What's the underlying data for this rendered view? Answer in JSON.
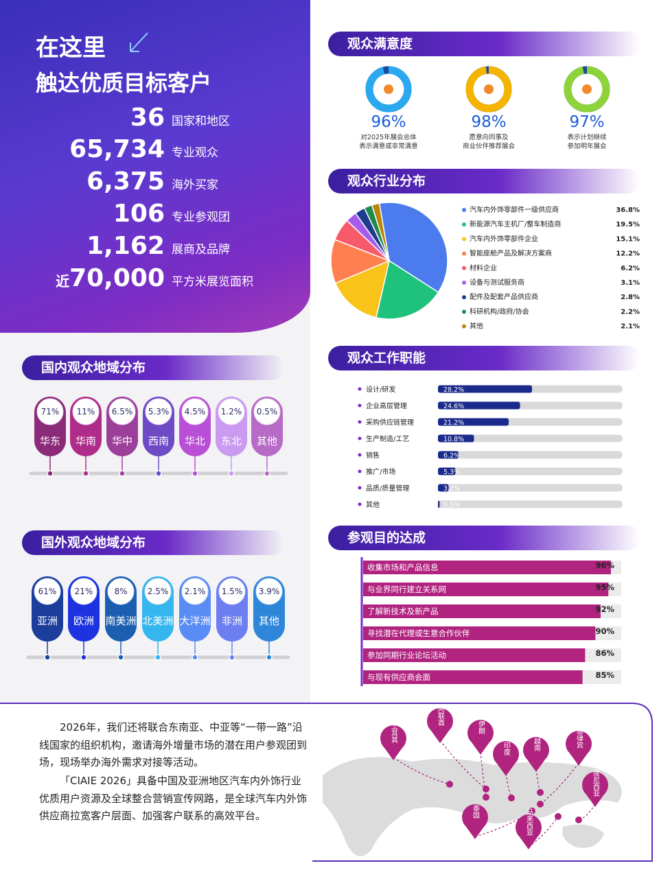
{
  "hero": {
    "title_line1": "在这里",
    "title_line2": "触达优质目标客户",
    "stats": [
      {
        "value": "36",
        "label": "国家和地区"
      },
      {
        "value": "65,734",
        "label": "专业观众"
      },
      {
        "value": "6,375",
        "label": "海外买家"
      },
      {
        "value": "106",
        "label": "专业参观团"
      },
      {
        "value": "1,162",
        "label": "展商及品牌"
      },
      {
        "prefix": "近",
        "value": "70,000",
        "label": "平方米展览面积"
      }
    ]
  },
  "domestic": {
    "title": "国内观众地域分布",
    "regions": [
      "华东",
      "华南",
      "华中",
      "西南",
      "华北",
      "东北",
      "其他"
    ],
    "value_labels": [
      "71%",
      "11%",
      "6.5%",
      "5.3%",
      "4.5%",
      "1.2%",
      "0.5%"
    ],
    "colors": [
      "#8b2a78",
      "#b02c8a",
      "#9c3f9a",
      "#6e4bc4",
      "#b94fd6",
      "#c99af0",
      "#b76ac6"
    ]
  },
  "foreign": {
    "title": "国外观众地域分布",
    "regions": [
      "亚洲",
      "欧洲",
      "南美洲",
      "北美洲",
      "大洋洲",
      "非洲",
      "其他"
    ],
    "value_labels": [
      "61%",
      "21%",
      "8%",
      "2.5%",
      "2.1%",
      "1.5%",
      "3.9%"
    ],
    "colors": [
      "#1b3d9c",
      "#1d33e0",
      "#1c5fb0",
      "#35b6ef",
      "#5a8cf5",
      "#6c7ef0",
      "#2e86d8"
    ]
  },
  "satisfaction": {
    "title": "观众满意度",
    "values": [
      96,
      98,
      97
    ],
    "value_labels": [
      "96%",
      "98%",
      "97%"
    ],
    "colors": [
      "#2aa8f0",
      "#f4b400",
      "#8fd33a"
    ],
    "descriptions": [
      [
        "对2025年展会总体",
        "表示满意或非常满意"
      ],
      [
        "愿意向同事及",
        "商业伙伴推荐展会"
      ],
      [
        "表示计划继续",
        "参加明年展会"
      ]
    ]
  },
  "industry": {
    "title": "观众行业分布",
    "type": "pie",
    "categories": [
      "汽车内外饰零部件一级供应商",
      "新能源汽车主机厂/整车制造商",
      "汽车内外饰零部件企业",
      "智能座舱产品及解决方案商",
      "材料企业",
      "设备与测试服务商",
      "配件及配套产品供应商",
      "科研机构/政府/协会",
      "其他"
    ],
    "values": [
      36.8,
      19.5,
      15.1,
      12.2,
      6.2,
      3.1,
      2.8,
      2.2,
      2.1
    ],
    "value_labels": [
      "36.8%",
      "19.5%",
      "15.1%",
      "12.2%",
      "6.2%",
      "3.1%",
      "2.8%",
      "2.2%",
      "2.1%"
    ],
    "colors": [
      "#4b7bec",
      "#1fc27a",
      "#f9c31a",
      "#ff7f50",
      "#f75b6b",
      "#a55eea",
      "#1d3c8f",
      "#1e8b4c",
      "#b8860b"
    ]
  },
  "job": {
    "title": "观众工作职能",
    "type": "bar",
    "categories": [
      "设计/研发",
      "企业高层管理",
      "采购供应链管理",
      "生产制造/工艺",
      "销售",
      "推广/市场",
      "品质/质量管理",
      "其他"
    ],
    "values": [
      28.2,
      24.6,
      21.2,
      10.8,
      6.2,
      5.3,
      3.2,
      0.5
    ],
    "value_labels": [
      "28.2%",
      "24.6%",
      "21.2%",
      "10.8%",
      "6.2%",
      "5.3%",
      "3.2%",
      "0.5%"
    ],
    "color": "#1a2a8c"
  },
  "purpose": {
    "title": "参观目的达成",
    "type": "bar",
    "categories": [
      "收集市场和产品信息",
      "与业界同行建立关系网",
      "了解新技术及新产品",
      "寻找潜在代理或生意合作伙伴",
      "参加同期行业论坛活动",
      "与现有供应商会面"
    ],
    "values": [
      96,
      95,
      92,
      90,
      86,
      85
    ],
    "value_labels": [
      "96%",
      "95%",
      "92%",
      "90%",
      "86%",
      "85%"
    ],
    "color": "#b0237f"
  },
  "footer": {
    "paragraphs": [
      "2026年，我们还将联合东南亚、中亚等“一带一路”沿线国家的组织机构，邀请海外增量市场的潜在用户参观团到场，现场举办海外需求对接等活动。",
      "「CIAIE 2026」具备中国及亚洲地区汽车内外饰行业优质用户资源及全球整合营销宣传网路，是全球汽车内外饰供应商拉宽客户层面、加强客户联系的高效平台。"
    ],
    "map_labels": [
      "土耳其",
      "阿联酋",
      "伊朗",
      "印度",
      "越南",
      "菲律宾",
      "印度尼西亚",
      "泰国",
      "马来西亚"
    ]
  }
}
